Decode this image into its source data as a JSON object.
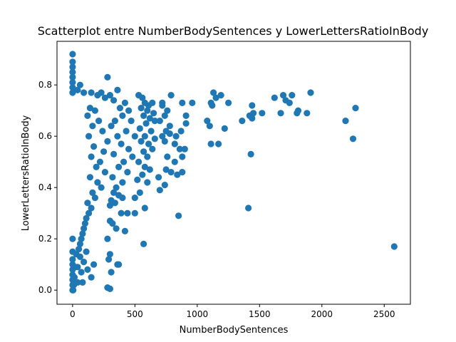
{
  "chart_data": {
    "type": "scatter",
    "title": "Scatterplot entre NumberBodySentences y LowerLettersRatioInBody",
    "xlabel": "NumberBodySentences",
    "ylabel": "LowerLettersRatioInBody",
    "xlim": [
      -125,
      2710
    ],
    "ylim": [
      -0.055,
      0.97
    ],
    "x_ticks": [
      0,
      500,
      1000,
      1500,
      2000,
      2500
    ],
    "y_ticks": [
      0.0,
      0.2,
      0.4,
      0.6,
      0.8
    ],
    "x_tick_labels": [
      "0",
      "500",
      "1000",
      "1500",
      "2000",
      "2500"
    ],
    "y_tick_labels": [
      "0.0",
      "0.2",
      "0.4",
      "0.6",
      "0.8"
    ],
    "grid": false,
    "marker_color": "#1f77b4",
    "points": [
      [
        0,
        0.92
      ],
      [
        0,
        0.89
      ],
      [
        0,
        0.87
      ],
      [
        0,
        0.85
      ],
      [
        0,
        0.83
      ],
      [
        0,
        0.81
      ],
      [
        0,
        0.79
      ],
      [
        0,
        0.77
      ],
      [
        0,
        0.2
      ],
      [
        0,
        0.15
      ],
      [
        0,
        0.12
      ],
      [
        0,
        0.1
      ],
      [
        0,
        0.08
      ],
      [
        0,
        0.06
      ],
      [
        0,
        0.04
      ],
      [
        0,
        0.02
      ],
      [
        0,
        0.0
      ],
      [
        5,
        0.0
      ],
      [
        10,
        0.02
      ],
      [
        15,
        0.05
      ],
      [
        20,
        0.09
      ],
      [
        30,
        0.14
      ],
      [
        40,
        0.03
      ],
      [
        60,
        0.8
      ],
      [
        40,
        0.78
      ],
      [
        90,
        0.77
      ],
      [
        150,
        0.77
      ],
      [
        200,
        0.76
      ],
      [
        230,
        0.77
      ],
      [
        300,
        0.76
      ],
      [
        260,
        0.75
      ],
      [
        140,
        0.71
      ],
      [
        180,
        0.7
      ],
      [
        120,
        0.68
      ],
      [
        210,
        0.66
      ],
      [
        160,
        0.64
      ],
      [
        240,
        0.62
      ],
      [
        130,
        0.6
      ],
      [
        280,
        0.58
      ],
      [
        170,
        0.56
      ],
      [
        250,
        0.54
      ],
      [
        150,
        0.52
      ],
      [
        220,
        0.5
      ],
      [
        190,
        0.48
      ],
      [
        260,
        0.46
      ],
      [
        140,
        0.44
      ],
      [
        200,
        0.42
      ],
      [
        230,
        0.4
      ],
      [
        160,
        0.38
      ],
      [
        180,
        0.36
      ],
      [
        120,
        0.34
      ],
      [
        150,
        0.32
      ],
      [
        130,
        0.3
      ],
      [
        110,
        0.28
      ],
      [
        100,
        0.26
      ],
      [
        90,
        0.24
      ],
      [
        80,
        0.22
      ],
      [
        70,
        0.2
      ],
      [
        60,
        0.18
      ],
      [
        50,
        0.16
      ],
      [
        110,
        0.15
      ],
      [
        60,
        0.13
      ],
      [
        90,
        0.11
      ],
      [
        40,
        0.09
      ],
      [
        70,
        0.07
      ],
      [
        120,
        0.08
      ],
      [
        170,
        0.1
      ],
      [
        150,
        0.05
      ],
      [
        80,
        0.03
      ],
      [
        280,
        0.83
      ],
      [
        360,
        0.78
      ],
      [
        330,
        0.74
      ],
      [
        420,
        0.73
      ],
      [
        380,
        0.71
      ],
      [
        450,
        0.7
      ],
      [
        400,
        0.68
      ],
      [
        340,
        0.66
      ],
      [
        470,
        0.66
      ],
      [
        310,
        0.64
      ],
      [
        430,
        0.62
      ],
      [
        360,
        0.6
      ],
      [
        500,
        0.6
      ],
      [
        390,
        0.57
      ],
      [
        450,
        0.55
      ],
      [
        330,
        0.53
      ],
      [
        480,
        0.52
      ],
      [
        410,
        0.5
      ],
      [
        370,
        0.48
      ],
      [
        440,
        0.46
      ],
      [
        320,
        0.44
      ],
      [
        400,
        0.42
      ],
      [
        350,
        0.4
      ],
      [
        330,
        0.38
      ],
      [
        370,
        0.37
      ],
      [
        310,
        0.35
      ],
      [
        340,
        0.34
      ],
      [
        400,
        0.36
      ],
      [
        300,
        0.33
      ],
      [
        390,
        0.3
      ],
      [
        440,
        0.3
      ],
      [
        300,
        0.27
      ],
      [
        320,
        0.26
      ],
      [
        420,
        0.23
      ],
      [
        350,
        0.24
      ],
      [
        280,
        0.2
      ],
      [
        300,
        0.14
      ],
      [
        290,
        0.12
      ],
      [
        360,
        0.1
      ],
      [
        370,
        0.1
      ],
      [
        310,
        0.07
      ],
      [
        280,
        0.01
      ],
      [
        300,
        0.005
      ],
      [
        530,
        0.76
      ],
      [
        560,
        0.75
      ],
      [
        580,
        0.73
      ],
      [
        610,
        0.72
      ],
      [
        640,
        0.73
      ],
      [
        550,
        0.71
      ],
      [
        600,
        0.7
      ],
      [
        650,
        0.69
      ],
      [
        570,
        0.68
      ],
      [
        620,
        0.67
      ],
      [
        660,
        0.66
      ],
      [
        590,
        0.65
      ],
      [
        540,
        0.63
      ],
      [
        630,
        0.62
      ],
      [
        580,
        0.6
      ],
      [
        660,
        0.59
      ],
      [
        550,
        0.58
      ],
      [
        610,
        0.57
      ],
      [
        640,
        0.55
      ],
      [
        570,
        0.54
      ],
      [
        600,
        0.52
      ],
      [
        530,
        0.5
      ],
      [
        580,
        0.48
      ],
      [
        620,
        0.47
      ],
      [
        560,
        0.45
      ],
      [
        520,
        0.43
      ],
      [
        600,
        0.42
      ],
      [
        540,
        0.38
      ],
      [
        500,
        0.36
      ],
      [
        580,
        0.32
      ],
      [
        500,
        0.3
      ],
      [
        570,
        0.18
      ],
      [
        720,
        0.72
      ],
      [
        760,
        0.7
      ],
      [
        740,
        0.68
      ],
      [
        700,
        0.66
      ],
      [
        780,
        0.64
      ],
      [
        750,
        0.62
      ],
      [
        720,
        0.6
      ],
      [
        790,
        0.76
      ],
      [
        720,
        0.73
      ],
      [
        880,
        0.73
      ],
      [
        960,
        0.73
      ],
      [
        910,
        0.68
      ],
      [
        780,
        0.61
      ],
      [
        830,
        0.6
      ],
      [
        870,
        0.62
      ],
      [
        910,
        0.65
      ],
      [
        740,
        0.58
      ],
      [
        820,
        0.57
      ],
      [
        860,
        0.55
      ],
      [
        900,
        0.55
      ],
      [
        760,
        0.52
      ],
      [
        880,
        0.52
      ],
      [
        820,
        0.5
      ],
      [
        750,
        0.47
      ],
      [
        790,
        0.46
      ],
      [
        840,
        0.45
      ],
      [
        880,
        0.46
      ],
      [
        740,
        0.41
      ],
      [
        700,
        0.39
      ],
      [
        690,
        0.44
      ],
      [
        850,
        0.29
      ],
      [
        1080,
        0.66
      ],
      [
        1100,
        0.64
      ],
      [
        1120,
        0.72
      ],
      [
        1130,
        0.77
      ],
      [
        1150,
        0.75
      ],
      [
        1110,
        0.73
      ],
      [
        1190,
        0.76
      ],
      [
        1250,
        0.73
      ],
      [
        1220,
        0.63
      ],
      [
        1110,
        0.57
      ],
      [
        1170,
        0.57
      ],
      [
        1360,
        0.66
      ],
      [
        1420,
        0.68
      ],
      [
        1440,
        0.67
      ],
      [
        1450,
        0.69
      ],
      [
        1520,
        0.69
      ],
      [
        1440,
        0.72
      ],
      [
        1430,
        0.53
      ],
      [
        1410,
        0.32
      ],
      [
        1620,
        0.75
      ],
      [
        1670,
        0.69
      ],
      [
        1690,
        0.76
      ],
      [
        1710,
        0.74
      ],
      [
        1740,
        0.73
      ],
      [
        1760,
        0.76
      ],
      [
        1800,
        0.69
      ],
      [
        1810,
        0.7
      ],
      [
        1880,
        0.69
      ],
      [
        1910,
        0.77
      ],
      [
        2190,
        0.66
      ],
      [
        2250,
        0.59
      ],
      [
        2270,
        0.71
      ],
      [
        2580,
        0.17
      ]
    ]
  }
}
